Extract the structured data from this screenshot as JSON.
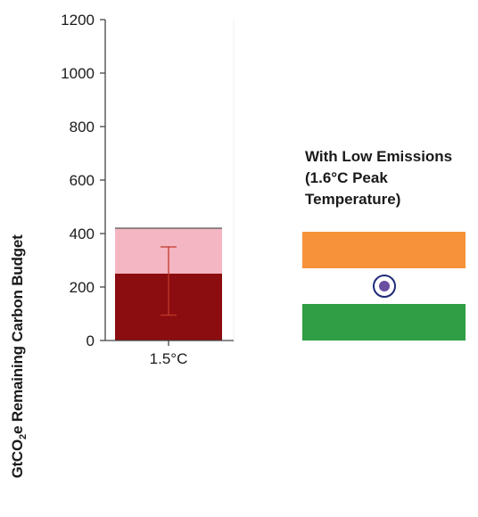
{
  "chart_data": {
    "type": "bar",
    "categories": [
      "1.5°C"
    ],
    "series": [
      {
        "values": [
          250
        ],
        "color": "#8b0d0f"
      },
      {
        "values": [
          170
        ],
        "color": "#f4b6c2"
      }
    ],
    "error_bar": {
      "low": 95,
      "high": 350,
      "color": "#c0392b"
    },
    "yticks": [
      0,
      200,
      400,
      600,
      800,
      1000,
      1200
    ],
    "ylim": [
      0,
      1200
    ],
    "ylabel_main": "GtCO",
    "ylabel_sub": "2",
    "ylabel_rest": "e Remaining Carbon Budget",
    "grid": false
  },
  "legend": {
    "title_lines": [
      "With Low Emissions",
      "(1.6°C Peak",
      "Temperature)"
    ],
    "flag": "india-flag",
    "colors": {
      "saffron": "#f7923a",
      "white": "#ffffff",
      "green": "#2f9e44",
      "chakra": "#1f2a7a"
    }
  }
}
